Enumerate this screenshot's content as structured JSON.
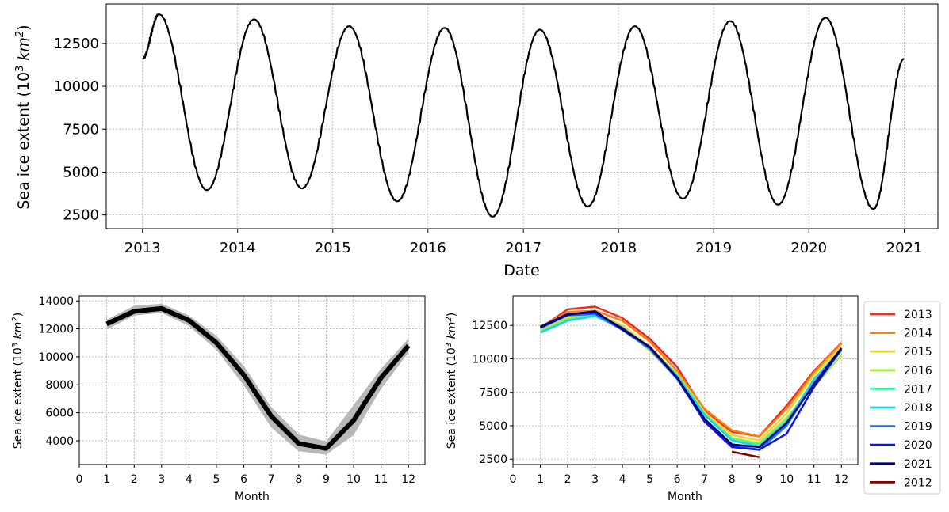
{
  "chart_data": [
    {
      "type": "line",
      "xlabel": "Date",
      "ylabel": "Sea ice extent (10³ km²)",
      "ylabel_main": "Sea ice extent (10",
      "ylabel_exp": "3",
      "ylabel_unit": " km",
      "ylabel_unit_exp": "2",
      "ylabel_close": ")",
      "xlim": [
        "2012-08-15",
        "2021-05-10"
      ],
      "ylim": [
        1700,
        14800
      ],
      "xticks": [
        "2013",
        "2014",
        "2015",
        "2016",
        "2017",
        "2018",
        "2019",
        "2020",
        "2021"
      ],
      "yticks": [
        2500,
        5000,
        7500,
        10000,
        12500
      ],
      "yticklabels": [
        "2500",
        "5000",
        "7500",
        "10000",
        "12500"
      ],
      "grid": true,
      "color": "#000000",
      "series": [
        {
          "x": [
            "2013-01-01",
            "2013-03-05",
            "2013-09-05",
            "2014-03-05",
            "2014-09-05",
            "2015-03-05",
            "2015-09-05",
            "2016-03-05",
            "2016-09-05",
            "2017-03-05",
            "2017-09-05",
            "2018-03-05",
            "2018-09-05",
            "2019-03-05",
            "2019-09-05",
            "2020-03-05",
            "2020-09-05",
            "2020-12-31"
          ],
          "y": [
            11600,
            14200,
            3950,
            13900,
            4050,
            13500,
            3300,
            13400,
            2400,
            13300,
            3000,
            13500,
            3450,
            13800,
            3100,
            14000,
            2850,
            11600
          ]
        }
      ]
    },
    {
      "type": "area",
      "xlabel": "Month",
      "ylabel_main": "Sea ice extent (10",
      "ylabel_exp": "3",
      "ylabel_unit": " km",
      "ylabel_unit_exp": "2",
      "ylabel_close": ")",
      "xlim": [
        0,
        12.6
      ],
      "ylim": [
        2300,
        14350
      ],
      "xticks": [
        0,
        1,
        2,
        3,
        4,
        5,
        6,
        7,
        8,
        9,
        10,
        11,
        12
      ],
      "xticklabels": [
        "0",
        "1",
        "2",
        "3",
        "4",
        "5",
        "6",
        "7",
        "8",
        "9",
        "10",
        "11",
        "12"
      ],
      "yticks": [
        4000,
        6000,
        8000,
        10000,
        12000,
        14000
      ],
      "yticklabels": [
        "4000",
        "6000",
        "8000",
        "10000",
        "12000",
        "14000"
      ],
      "grid": true,
      "x": [
        1,
        2,
        3,
        4,
        5,
        6,
        7,
        8,
        9,
        10,
        11,
        12
      ],
      "mean": [
        12350,
        13250,
        13450,
        12600,
        11000,
        8700,
        5750,
        3800,
        3450,
        5450,
        8500,
        10800
      ],
      "lower": [
        11950,
        12950,
        13150,
        12200,
        10500,
        7950,
        4950,
        3250,
        3000,
        4400,
        7700,
        10300
      ],
      "upper": [
        12650,
        13650,
        13800,
        12950,
        11500,
        9350,
        6400,
        4450,
        3950,
        6550,
        9150,
        11300
      ],
      "line_color": "#000000",
      "band_color": "#b8b8b8"
    },
    {
      "type": "line",
      "xlabel": "Month",
      "ylabel_main": "Sea ice extent (10",
      "ylabel_exp": "3",
      "ylabel_unit": " km",
      "ylabel_unit_exp": "2",
      "ylabel_close": ")",
      "xlim": [
        0,
        12.6
      ],
      "ylim": [
        2100,
        14700
      ],
      "xticks": [
        0,
        1,
        2,
        3,
        4,
        5,
        6,
        7,
        8,
        9,
        10,
        11,
        12
      ],
      "xticklabels": [
        "0",
        "1",
        "2",
        "3",
        "4",
        "5",
        "6",
        "7",
        "8",
        "9",
        "10",
        "11",
        "12"
      ],
      "yticks": [
        2500,
        5000,
        7500,
        10000,
        12500
      ],
      "yticklabels": [
        "2500",
        "5000",
        "7500",
        "10000",
        "12500"
      ],
      "grid": true,
      "legend_position": "outside-right",
      "series": [
        {
          "name": "2013",
          "color": "#ee2a1b",
          "x": [
            1,
            2,
            3,
            4,
            5,
            6,
            7,
            8,
            9,
            10,
            11,
            12
          ],
          "y": [
            12300,
            13700,
            13900,
            13050,
            11500,
            9400,
            6100,
            4550,
            4200,
            6500,
            9100,
            11200
          ]
        },
        {
          "name": "2014",
          "color": "#ff7f0e",
          "x": [
            1,
            2,
            3,
            4,
            5,
            6,
            7,
            8,
            9,
            10,
            11,
            12
          ],
          "y": [
            12400,
            13500,
            13600,
            12850,
            11300,
            9100,
            6250,
            4650,
            4200,
            6250,
            9000,
            11150
          ]
        },
        {
          "name": "2015",
          "color": "#f6d52a",
          "x": [
            1,
            2,
            3,
            4,
            5,
            6,
            7,
            8,
            9,
            10,
            11,
            12
          ],
          "y": [
            12200,
            13100,
            13400,
            12500,
            10900,
            8900,
            6000,
            4300,
            3900,
            5900,
            8800,
            10900
          ]
        },
        {
          "name": "2016",
          "color": "#a8ea4a",
          "x": [
            1,
            2,
            3,
            4,
            5,
            6,
            7,
            8,
            9,
            10,
            11,
            12
          ],
          "y": [
            12100,
            13000,
            13300,
            12400,
            10600,
            8600,
            5800,
            4100,
            3700,
            5600,
            7900,
            10300
          ]
        },
        {
          "name": "2017",
          "color": "#47f3a0",
          "x": [
            1,
            2,
            3,
            4,
            5,
            6,
            7,
            8,
            9,
            10,
            11,
            12
          ],
          "y": [
            12000,
            12900,
            13300,
            12300,
            10800,
            8800,
            5900,
            4000,
            3600,
            5400,
            8300,
            10600
          ]
        },
        {
          "name": "2018",
          "color": "#16d4ee",
          "x": [
            1,
            2,
            3,
            4,
            5,
            6,
            7,
            8,
            9,
            10,
            11,
            12
          ],
          "y": [
            11950,
            12850,
            13200,
            12250,
            10800,
            8700,
            5800,
            3900,
            3450,
            5300,
            8500,
            10700
          ]
        },
        {
          "name": "2019",
          "color": "#1d6ef0",
          "x": [
            1,
            2,
            3,
            4,
            5,
            6,
            7,
            8,
            9,
            10,
            11,
            12
          ],
          "y": [
            12300,
            13250,
            13350,
            12150,
            10750,
            8500,
            5400,
            3500,
            3200,
            5000,
            8200,
            10800
          ]
        },
        {
          "name": "2020",
          "color": "#0f13e6",
          "x": [
            1,
            2,
            3,
            4,
            5,
            6,
            7,
            8,
            9,
            10,
            11,
            12
          ],
          "y": [
            12400,
            13350,
            13450,
            12300,
            10850,
            8550,
            5300,
            3400,
            3200,
            4400,
            7900,
            10700
          ]
        },
        {
          "name": "2021",
          "color": "#00006e",
          "x": [
            1,
            2,
            3,
            4,
            5,
            6,
            7,
            8,
            9,
            10,
            11,
            12
          ],
          "y": [
            12350,
            13300,
            13550,
            12200,
            10900,
            8600,
            5500,
            3600,
            3400,
            5200,
            8100,
            10800
          ]
        },
        {
          "name": "2012",
          "color": "#7f0000",
          "x": [
            8,
            9
          ],
          "y": [
            3050,
            2650
          ]
        }
      ]
    }
  ]
}
